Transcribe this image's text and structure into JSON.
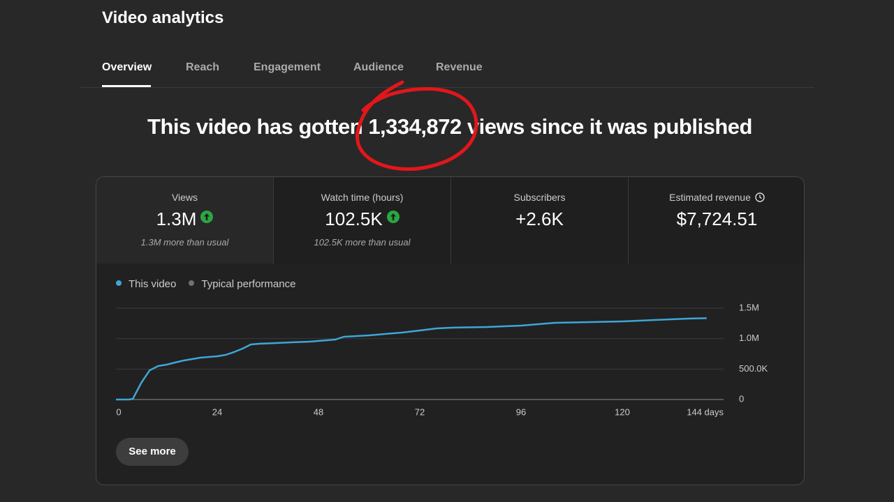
{
  "header": {
    "title": "Video analytics"
  },
  "tabs": [
    "Overview",
    "Reach",
    "Engagement",
    "Audience",
    "Revenue"
  ],
  "headline": {
    "before": "This video has gotten",
    "views": "1,334,872",
    "after": "views since it was published"
  },
  "metrics": [
    {
      "label": "Views",
      "value": "1.3M",
      "note": "1.3M more than usual"
    },
    {
      "label": "Watch time (hours)",
      "value": "102.5K",
      "note": "102.5K more than usual"
    },
    {
      "label": "Subscribers",
      "value": "+2.6K"
    },
    {
      "label": "Estimated revenue",
      "value": "$7,724.51"
    }
  ],
  "chart_data": {
    "type": "line",
    "x": [
      0,
      3,
      4,
      6,
      8,
      10,
      12,
      14,
      16,
      20,
      24,
      26,
      28,
      30,
      32,
      34,
      38,
      42,
      46,
      48,
      52,
      54,
      60,
      64,
      68,
      72,
      76,
      80,
      88,
      96,
      100,
      104,
      112,
      120,
      128,
      136,
      140
    ],
    "series": [
      {
        "name": "This video",
        "color": "#3ea6d8",
        "values": [
          0,
          0,
          10000,
          275000,
          480000,
          550000,
          573000,
          607000,
          640000,
          687000,
          710000,
          733000,
          780000,
          836000,
          905000,
          916000,
          928000,
          940000,
          950000,
          962000,
          985000,
          1030000,
          1054000,
          1077000,
          1100000,
          1134000,
          1168000,
          1180000,
          1191000,
          1214000,
          1237000,
          1260000,
          1271000,
          1283000,
          1306000,
          1329000,
          1335000
        ]
      },
      {
        "name": "Typical performance",
        "color": "#717171",
        "values": [
          null,
          null,
          null,
          null,
          null,
          null,
          null,
          null,
          null,
          null,
          null,
          null,
          null,
          null,
          null,
          null,
          null,
          null,
          null,
          null,
          null,
          null,
          null,
          null,
          null,
          null,
          null,
          null,
          null,
          null,
          null,
          null,
          null,
          null,
          null,
          null,
          null
        ]
      }
    ],
    "xlim": [
      0,
      144
    ],
    "xticks": [
      0,
      24,
      48,
      72,
      96,
      120,
      {
        "value": 144,
        "label": "144 days"
      }
    ],
    "ylim": [
      0,
      1500000
    ],
    "yticks": [
      0,
      {
        "value": 500000,
        "label": "500.0K"
      },
      {
        "value": 1000000,
        "label": "1.0M"
      },
      {
        "value": 1500000,
        "label": "1.5M"
      }
    ],
    "grid": true
  },
  "button": "See more"
}
